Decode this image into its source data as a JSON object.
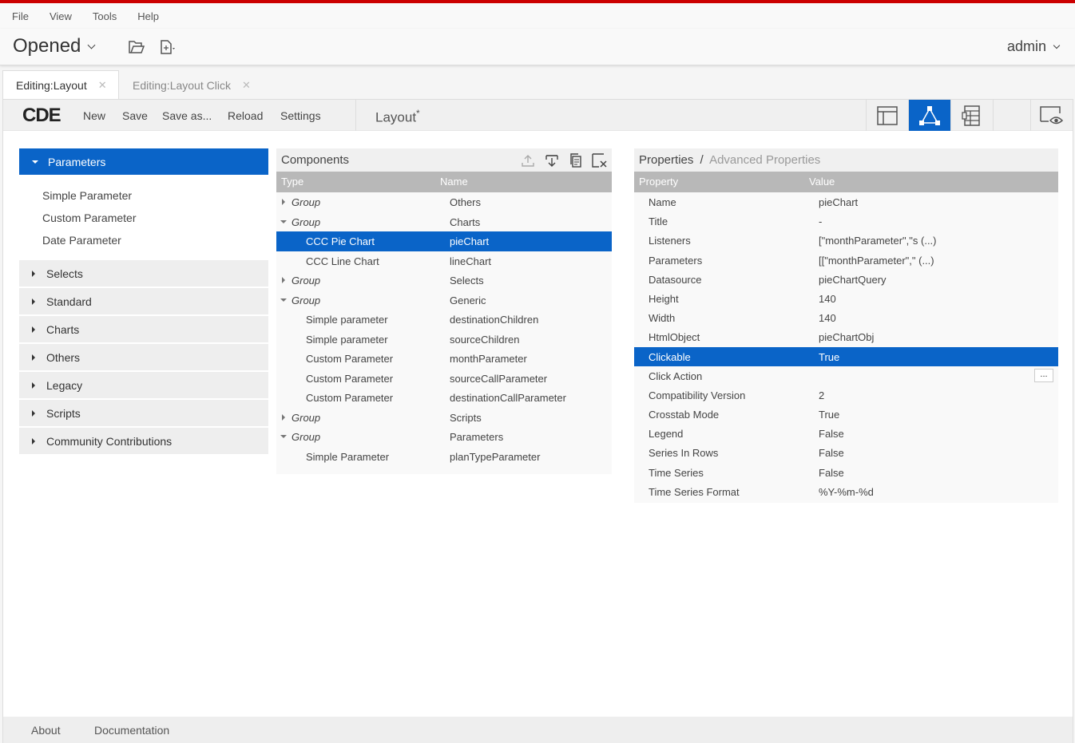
{
  "menubar": [
    "File",
    "View",
    "Tools",
    "Help"
  ],
  "header": {
    "opened_label": "Opened",
    "user": "admin"
  },
  "tabs": [
    {
      "label": "Editing:Layout"
    },
    {
      "label": "Editing:Layout Click"
    }
  ],
  "toolbar": {
    "logo": "CDE",
    "buttons": [
      "New",
      "Save",
      "Save as...",
      "Reload",
      "Settings"
    ],
    "title": "Layout",
    "title_marker": "*"
  },
  "sidebar": {
    "sections": [
      {
        "label": "Parameters",
        "items": [
          "Simple Parameter",
          "Custom Parameter",
          "Date Parameter"
        ]
      },
      {
        "label": "Selects"
      },
      {
        "label": "Standard"
      },
      {
        "label": "Charts"
      },
      {
        "label": "Others"
      },
      {
        "label": "Legacy"
      },
      {
        "label": "Scripts"
      },
      {
        "label": "Community Contributions"
      }
    ]
  },
  "components": {
    "title": "Components",
    "columns": [
      "Type",
      "Name"
    ],
    "rows": [
      {
        "type": "Group",
        "name": "Others"
      },
      {
        "type": "Group",
        "name": "Charts"
      },
      {
        "type": "CCC Pie Chart",
        "name": "pieChart"
      },
      {
        "type": "CCC Line Chart",
        "name": "lineChart"
      },
      {
        "type": "Group",
        "name": "Selects"
      },
      {
        "type": "Group",
        "name": "Generic"
      },
      {
        "type": "Simple parameter",
        "name": "destinationChildren"
      },
      {
        "type": "Simple parameter",
        "name": "sourceChildren"
      },
      {
        "type": "Custom Parameter",
        "name": "monthParameter"
      },
      {
        "type": "Custom Parameter",
        "name": "sourceCallParameter"
      },
      {
        "type": "Custom Parameter",
        "name": "destinationCallParameter"
      },
      {
        "type": "Group",
        "name": "Scripts"
      },
      {
        "type": "Group",
        "name": "Parameters"
      },
      {
        "type": "Simple Parameter",
        "name": "planTypeParameter"
      }
    ]
  },
  "properties": {
    "title": "Properties",
    "separator": "/",
    "advanced": "Advanced Properties",
    "columns": [
      "Property",
      "Value"
    ],
    "rows": [
      {
        "property": "Name",
        "value": "pieChart"
      },
      {
        "property": "Title",
        "value": "-"
      },
      {
        "property": "Listeners",
        "value": "[\"monthParameter\",\"s (...)"
      },
      {
        "property": "Parameters",
        "value": "[[\"monthParameter\",\" (...)"
      },
      {
        "property": "Datasource",
        "value": "pieChartQuery"
      },
      {
        "property": "Height",
        "value": "140"
      },
      {
        "property": "Width",
        "value": "140"
      },
      {
        "property": "HtmlObject",
        "value": "pieChartObj"
      },
      {
        "property": "Clickable",
        "value": "True"
      },
      {
        "property": "Click Action",
        "value": ""
      },
      {
        "property": "Compatibility Version",
        "value": "2"
      },
      {
        "property": "Crosstab Mode",
        "value": "True"
      },
      {
        "property": "Legend",
        "value": "False"
      },
      {
        "property": "Series In Rows",
        "value": "False"
      },
      {
        "property": "Time Series",
        "value": "False"
      },
      {
        "property": "Time Series Format",
        "value": "%Y-%m-%d"
      }
    ],
    "edit_button": "..."
  },
  "footer": [
    "About",
    "Documentation"
  ],
  "colors": {
    "accent": "#0a64c8",
    "brand_red": "#cc0000"
  }
}
